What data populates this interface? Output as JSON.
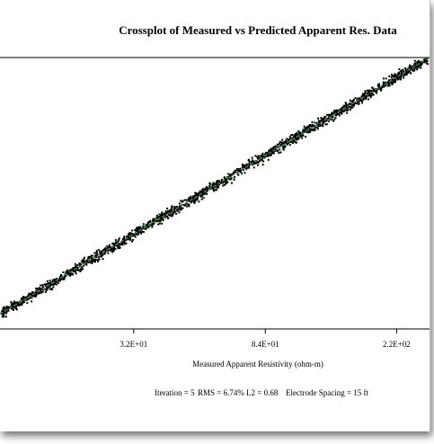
{
  "chart_data": {
    "type": "scatter",
    "title": "Crossplot of Measured vs Predicted Apparent Res. Data",
    "xlabel": "Measured Apparent Resistivity (ohm-m)",
    "x_scale": "log",
    "y_scale": "log",
    "xlim": [
      12,
      280
    ],
    "ylim": [
      10,
      280
    ],
    "x_ticks": [
      {
        "value": 32,
        "label": "3.2E+01"
      },
      {
        "value": 84,
        "label": "8.4E+01"
      },
      {
        "value": 220,
        "label": "2.2E+02"
      }
    ],
    "grid": false,
    "legend": "none",
    "series": [
      {
        "marker": "square",
        "color": "#000000",
        "points_count": 1800,
        "relationship": "predicted ≈ measured",
        "scatter_percent": 6.74
      }
    ],
    "fit_line": {
      "color": "#2e8b2e",
      "style": "dashed",
      "x": [
        12,
        280
      ],
      "y": [
        12,
        280
      ]
    },
    "footer": {
      "iteration": "Iteration = 5",
      "rms": "RMS = 6.74%",
      "l2": "L2 = 0.68",
      "electrode_spacing": "Electrode Spacing = 15 ft"
    }
  }
}
